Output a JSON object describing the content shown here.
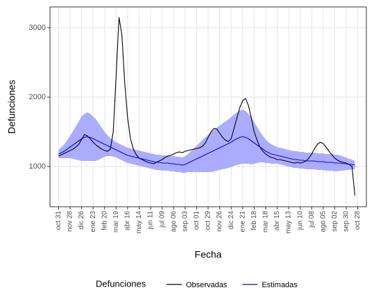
{
  "chart_data": {
    "type": "line",
    "xlabel": "Fecha",
    "ylabel": "Defunciones",
    "legend_title": "Defunciones",
    "legend_position": "bottom",
    "grid": true,
    "xlim": [
      -3,
      107
    ],
    "ylim": [
      420,
      3300
    ],
    "yticks": [
      1000,
      2000,
      3000
    ],
    "xticks": [
      {
        "value": 0,
        "label": "oct 31"
      },
      {
        "value": 4,
        "label": "nov 28"
      },
      {
        "value": 8,
        "label": "dic 26"
      },
      {
        "value": 12,
        "label": "ene 23"
      },
      {
        "value": 16,
        "label": "feb 20"
      },
      {
        "value": 20,
        "label": "mar 19"
      },
      {
        "value": 24,
        "label": "abr 16"
      },
      {
        "value": 28,
        "label": "may 14"
      },
      {
        "value": 32,
        "label": "jun 11"
      },
      {
        "value": 36,
        "label": "jul 09"
      },
      {
        "value": 40,
        "label": "ago 06"
      },
      {
        "value": 44,
        "label": "sep 03"
      },
      {
        "value": 48,
        "label": "oct 01"
      },
      {
        "value": 52,
        "label": "oct 29"
      },
      {
        "value": 56,
        "label": "nov 26"
      },
      {
        "value": 60,
        "label": "dic 24"
      },
      {
        "value": 64,
        "label": "ene 21"
      },
      {
        "value": 68,
        "label": "feb 18"
      },
      {
        "value": 72,
        "label": "mar 18"
      },
      {
        "value": 76,
        "label": "abr 15"
      },
      {
        "value": 80,
        "label": "may 13"
      },
      {
        "value": 84,
        "label": "jun 10"
      },
      {
        "value": 88,
        "label": "jul 08"
      },
      {
        "value": 92,
        "label": "ago 05"
      },
      {
        "value": 96,
        "label": "sep 02"
      },
      {
        "value": 100,
        "label": "sep 30"
      },
      {
        "value": 104,
        "label": "oct 28"
      }
    ],
    "band": {
      "color": "#a3a3ff",
      "upper": [
        1240,
        1280,
        1320,
        1380,
        1440,
        1510,
        1580,
        1650,
        1720,
        1760,
        1780,
        1760,
        1720,
        1680,
        1620,
        1560,
        1500,
        1450,
        1410,
        1380,
        1350,
        1330,
        1310,
        1290,
        1270,
        1260,
        1250,
        1240,
        1230,
        1220,
        1210,
        1200,
        1190,
        1180,
        1170,
        1170,
        1160,
        1160,
        1160,
        1150,
        1150,
        1140,
        1140,
        1130,
        1150,
        1180,
        1220,
        1260,
        1300,
        1340,
        1380,
        1420,
        1460,
        1500,
        1530,
        1560,
        1590,
        1620,
        1650,
        1680,
        1710,
        1750,
        1780,
        1810,
        1820,
        1800,
        1760,
        1710,
        1640,
        1570,
        1500,
        1440,
        1390,
        1350,
        1320,
        1300,
        1280,
        1270,
        1260,
        1250,
        1240,
        1230,
        1220,
        1220,
        1210,
        1210,
        1200,
        1200,
        1200,
        1200,
        1190,
        1190,
        1190,
        1180,
        1180,
        1180,
        1170,
        1170,
        1160,
        1140,
        1130,
        1110,
        1100,
        1080
      ],
      "lower": [
        1120,
        1120,
        1120,
        1120,
        1120,
        1110,
        1100,
        1090,
        1080,
        1080,
        1080,
        1080,
        1080,
        1080,
        1100,
        1120,
        1140,
        1150,
        1150,
        1140,
        1130,
        1110,
        1090,
        1070,
        1050,
        1040,
        1030,
        1020,
        1010,
        1000,
        990,
        980,
        970,
        960,
        950,
        950,
        940,
        940,
        940,
        930,
        930,
        920,
        920,
        910,
        910,
        920,
        920,
        920,
        920,
        920,
        920,
        920,
        920,
        920,
        930,
        940,
        950,
        960,
        970,
        980,
        990,
        1010,
        1020,
        1030,
        1040,
        1040,
        1040,
        1030,
        1040,
        1050,
        1060,
        1060,
        1050,
        1050,
        1040,
        1040,
        1040,
        1030,
        1020,
        1010,
        1000,
        990,
        980,
        980,
        970,
        970,
        960,
        960,
        960,
        960,
        950,
        950,
        950,
        940,
        940,
        940,
        930,
        930,
        940,
        940,
        950,
        950,
        960,
        960
      ]
    },
    "series": [
      {
        "name": "Observadas",
        "color": "#000000",
        "values": [
          1150,
          1170,
          1190,
          1210,
          1230,
          1250,
          1280,
          1320,
          1390,
          1460,
          1440,
          1400,
          1350,
          1310,
          1280,
          1250,
          1230,
          1220,
          1250,
          1500,
          2300,
          3150,
          2900,
          2200,
          1700,
          1400,
          1250,
          1170,
          1120,
          1100,
          1080,
          1060,
          1050,
          1040,
          1060,
          1080,
          1100,
          1130,
          1150,
          1160,
          1180,
          1200,
          1210,
          1200,
          1220,
          1230,
          1240,
          1250,
          1260,
          1270,
          1290,
          1340,
          1420,
          1500,
          1550,
          1540,
          1480,
          1420,
          1380,
          1360,
          1400,
          1550,
          1700,
          1850,
          1950,
          1980,
          1880,
          1700,
          1500,
          1380,
          1280,
          1220,
          1180,
          1150,
          1130,
          1120,
          1100,
          1100,
          1090,
          1080,
          1070,
          1060,
          1050,
          1060,
          1050,
          1060,
          1080,
          1120,
          1180,
          1260,
          1320,
          1350,
          1330,
          1280,
          1220,
          1170,
          1120,
          1090,
          1070,
          1060,
          1050,
          1030,
          1000,
          580
        ]
      },
      {
        "name": "Estimadas",
        "color": "#0000ff",
        "values": [
          1180,
          1200,
          1220,
          1250,
          1280,
          1310,
          1340,
          1370,
          1400,
          1420,
          1430,
          1420,
          1400,
          1380,
          1360,
          1340,
          1320,
          1300,
          1280,
          1260,
          1240,
          1220,
          1200,
          1180,
          1160,
          1150,
          1140,
          1130,
          1120,
          1110,
          1100,
          1090,
          1080,
          1070,
          1060,
          1060,
          1050,
          1050,
          1050,
          1040,
          1040,
          1030,
          1030,
          1020,
          1030,
          1050,
          1070,
          1090,
          1110,
          1130,
          1150,
          1170,
          1190,
          1210,
          1230,
          1250,
          1270,
          1290,
          1310,
          1330,
          1350,
          1380,
          1400,
          1420,
          1430,
          1420,
          1400,
          1370,
          1340,
          1310,
          1280,
          1250,
          1220,
          1200,
          1180,
          1170,
          1160,
          1150,
          1140,
          1130,
          1120,
          1110,
          1100,
          1100,
          1090,
          1090,
          1080,
          1080,
          1080,
          1080,
          1070,
          1070,
          1070,
          1060,
          1060,
          1060,
          1050,
          1050,
          1050,
          1040,
          1040,
          1030,
          1030,
          1020
        ]
      }
    ]
  }
}
